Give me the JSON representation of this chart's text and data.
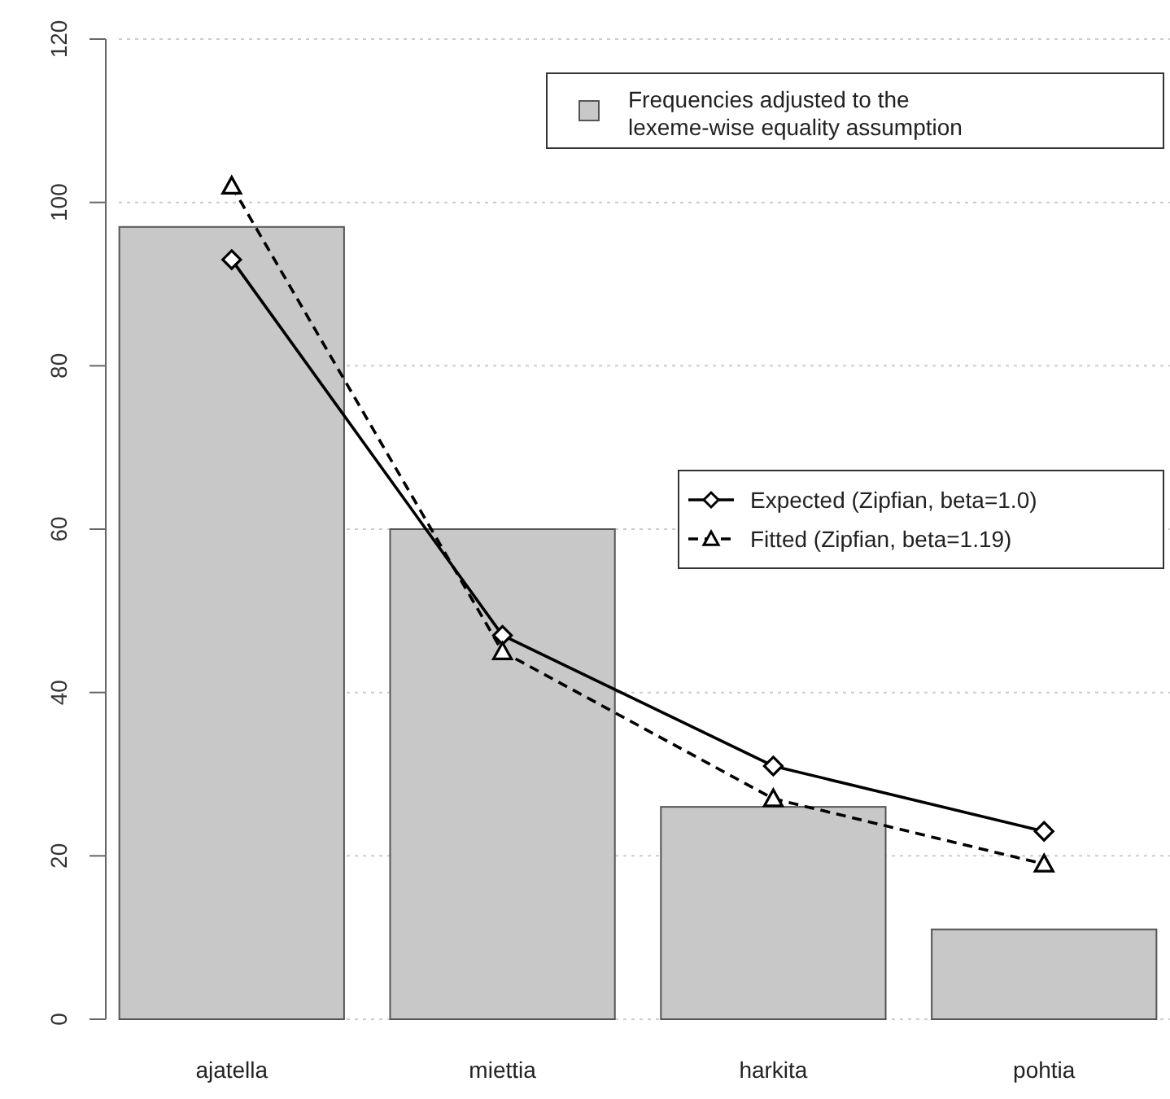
{
  "chart_data": {
    "type": "bar",
    "categories": [
      "ajatella",
      "miettia",
      "harkita",
      "pohtia"
    ],
    "series": [
      {
        "name": "Frequencies adjusted to the lexeme-wise equality assumption",
        "color": "#c8c8c8",
        "values": [
          97,
          60,
          26,
          11
        ]
      },
      {
        "name": "Expected (Zipfian, beta=1.0)",
        "type": "line",
        "color": "#000000",
        "marker": "diamond",
        "line_style": "solid",
        "values": [
          93,
          47,
          31,
          23
        ]
      },
      {
        "name": "Fitted (Zipfian, beta=1.19)",
        "type": "line",
        "color": "#000000",
        "marker": "triangle",
        "line_style": "dashed",
        "values": [
          102,
          45,
          27,
          19
        ]
      }
    ],
    "ylim": [
      0,
      120
    ],
    "yticks": [
      0,
      20,
      40,
      60,
      80,
      100,
      120
    ],
    "grid": "y",
    "legend": "right"
  }
}
